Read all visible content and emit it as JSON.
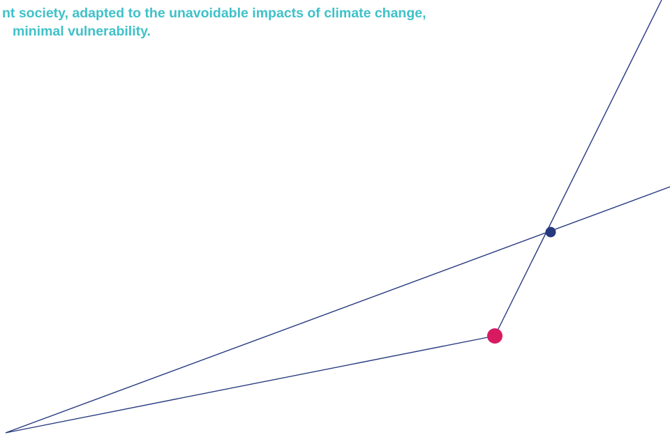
{
  "heading": {
    "line1": "nt society, adapted to the unavoidable impacts of climate change,",
    "line2": "minimal vulnerability."
  },
  "colors": {
    "heading_text": "#3fc1c9",
    "line": "#26397f",
    "node_blue": "#26397f",
    "node_pink": "#d81b60",
    "background": "#ffffff"
  }
}
